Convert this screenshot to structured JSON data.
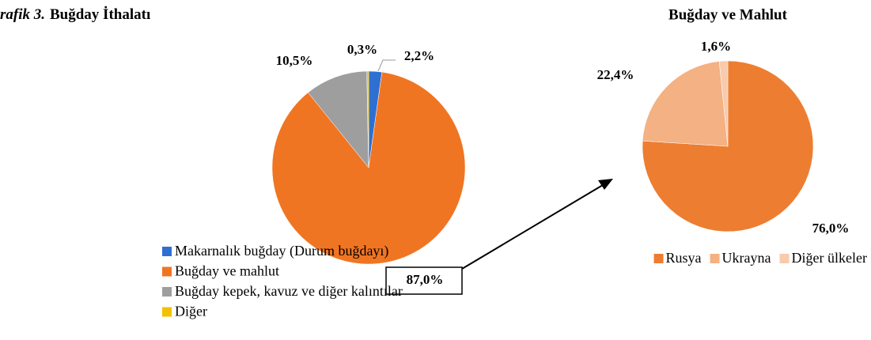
{
  "chart_data": [
    {
      "type": "pie",
      "label": "rafik 3.",
      "title": "Buğday İthalatı",
      "categories": [
        "Makarnalık buğday (Durum buğdayı)",
        "Buğday ve mahlut",
        "Buğday kepek, kavuz ve diğer kalıntılar",
        "Diğer"
      ],
      "values": [
        2.2,
        87.0,
        10.5,
        0.3
      ],
      "value_labels": [
        "2,2%",
        "87,0%",
        "10,5%",
        "0,3%"
      ],
      "colors": [
        "#2f6fd1",
        "#f07522",
        "#9e9e9e",
        "#f2c100"
      ],
      "legend": "bottom-left"
    },
    {
      "type": "pie",
      "title": "Buğday ve Mahlut",
      "categories": [
        "Rusya",
        "Ukrayna",
        "Diğer ülkeler"
      ],
      "values": [
        76.0,
        22.4,
        1.6
      ],
      "value_labels": [
        "76,0%",
        "22,4%",
        "1,6%"
      ],
      "colors": [
        "#ed7d31",
        "#f4b183",
        "#f8cbad"
      ],
      "legend": "bottom"
    }
  ]
}
